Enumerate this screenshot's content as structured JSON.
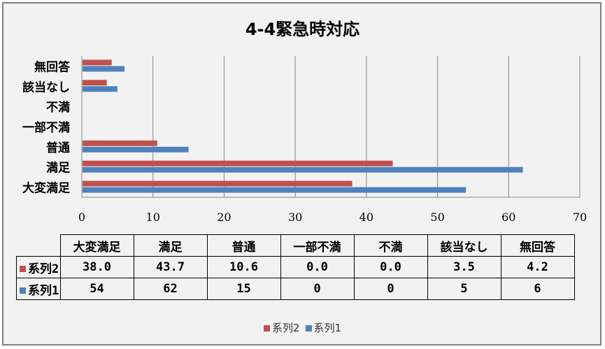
{
  "chart_data": {
    "type": "bar",
    "orientation": "horizontal",
    "title": "4-4緊急時対応",
    "categories": [
      "大変満足",
      "満足",
      "普通",
      "一部不満",
      "不満",
      "該当なし",
      "無回答"
    ],
    "series": [
      {
        "name": "系列2",
        "color": "#c0504d",
        "values": [
          38.0,
          43.7,
          10.6,
          0.0,
          0.0,
          3.5,
          4.2
        ],
        "labels": [
          "38.0",
          "43.7",
          "10.6",
          "0.0",
          "0.0",
          "3.5",
          "4.2"
        ]
      },
      {
        "name": "系列1",
        "color": "#4f81bd",
        "values": [
          54,
          62,
          15,
          0,
          0,
          5,
          6
        ],
        "labels": [
          "54",
          "62",
          "15",
          "0",
          "0",
          "5",
          "6"
        ]
      }
    ],
    "xlim": [
      0,
      70
    ],
    "xticks": [
      "0",
      "10",
      "20",
      "30",
      "40",
      "50",
      "60",
      "70"
    ],
    "grid": true,
    "data_table": true,
    "legend_position": "bottom"
  }
}
